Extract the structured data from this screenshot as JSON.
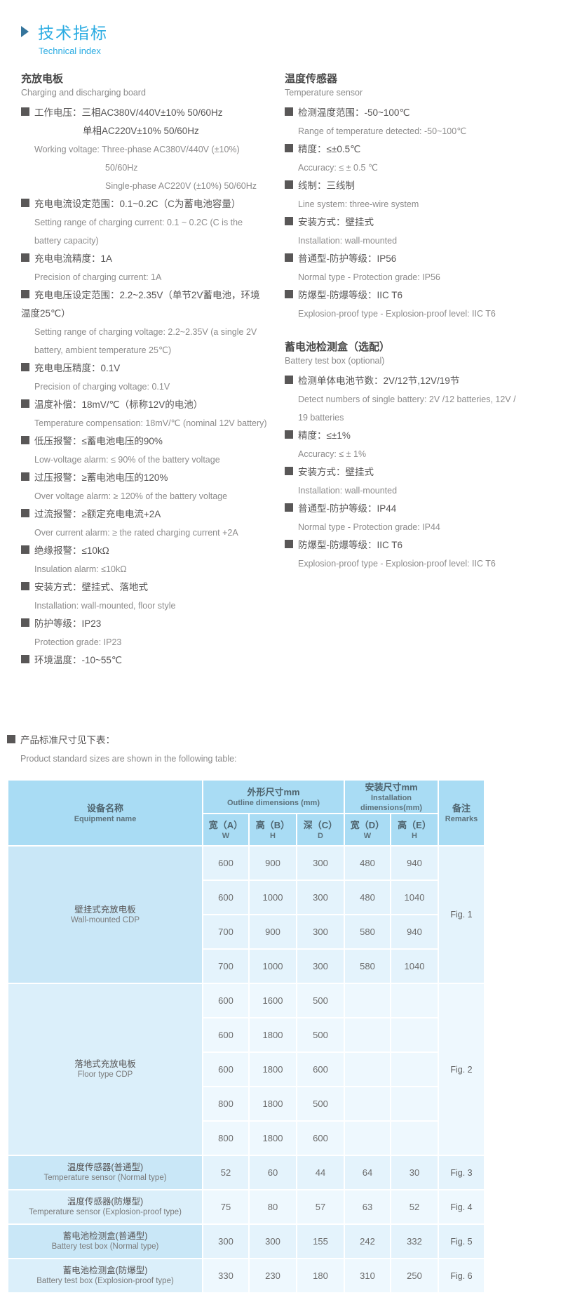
{
  "header": {
    "title_zh": "技术指标",
    "title_en": "Technical index"
  },
  "colors": {
    "accent_blue": "#29abe2",
    "arrow_blue": "#35759c",
    "bullet_gray": "#595757",
    "table_header_bg": "#a9dcf4",
    "table_name_bg_odd": "#c9e7f7",
    "table_name_bg_even": "#dbeffa",
    "table_data_bg_odd": "#e4f3fc",
    "table_data_bg_even": "#eef8fe"
  },
  "columns": {
    "left": {
      "sections": [
        {
          "heading_zh": "充放电板",
          "heading_en": "Charging and discharging board",
          "items": [
            {
              "zh_lines": [
                "工作电压：三相AC380V/440V±10%  50/60Hz",
                "单相AC220V±10%  50/60Hz"
              ],
              "en_lines": [
                "Working voltage: Three-phase AC380V/440V (±10%)",
                "50/60Hz",
                "Single-phase AC220V (±10%) 50/60Hz"
              ]
            },
            {
              "zh_lines": [
                "充电电流设定范围：0.1~0.2C（C为蓄电池容量）"
              ],
              "en_lines": [
                "Setting range of charging current: 0.1 ~ 0.2C (C is the battery capacity)"
              ]
            },
            {
              "zh_lines": [
                "充电电流精度：1A"
              ],
              "en_lines": [
                "Precision of charging current: 1A"
              ]
            },
            {
              "zh_lines": [
                "充电电压设定范围：2.2~2.35V（单节2V蓄电池，环境温度25℃）"
              ],
              "en_lines": [
                "Setting range of charging voltage: 2.2~2.35V (a single 2V battery, ambient temperature 25℃)"
              ]
            },
            {
              "zh_lines": [
                "充电电压精度：0.1V"
              ],
              "en_lines": [
                "Precision of charging voltage: 0.1V"
              ]
            },
            {
              "zh_lines": [
                "温度补偿：18mV/℃（标称12V的电池）"
              ],
              "en_lines": [
                "Temperature compensation: 18mV/℃ (nominal 12V battery)"
              ]
            },
            {
              "zh_lines": [
                "低压报警：≤蓄电池电压的90%"
              ],
              "en_lines": [
                "Low-voltage alarm: ≤ 90% of the battery voltage"
              ]
            },
            {
              "zh_lines": [
                "过压报警：≥蓄电池电压的120%"
              ],
              "en_lines": [
                "Over voltage alarm: ≥ 120% of the battery voltage"
              ]
            },
            {
              "zh_lines": [
                "过流报警：≥额定充电电流+2A"
              ],
              "en_lines": [
                "Over current alarm: ≥ the rated charging current +2A"
              ]
            },
            {
              "zh_lines": [
                "绝缘报警：≤10kΩ"
              ],
              "en_lines": [
                "Insulation alarm: ≤10kΩ"
              ]
            },
            {
              "zh_lines": [
                "安装方式：壁挂式、落地式"
              ],
              "en_lines": [
                "Installation: wall-mounted, floor style"
              ]
            },
            {
              "zh_lines": [
                "防护等级：IP23"
              ],
              "en_lines": [
                "Protection grade: IP23"
              ]
            },
            {
              "zh_lines": [
                "环境温度：-10~55℃"
              ],
              "en_lines": []
            }
          ]
        }
      ]
    },
    "right": {
      "sections": [
        {
          "heading_zh": "温度传感器",
          "heading_en": "Temperature sensor",
          "items": [
            {
              "zh_lines": [
                "检测温度范围：-50~100℃"
              ],
              "en_lines": [
                "Range of temperature detected: -50~100℃"
              ]
            },
            {
              "zh_lines": [
                "精度：≤±0.5℃"
              ],
              "en_lines": [
                "Accuracy: ≤ ± 0.5 ℃"
              ]
            },
            {
              "zh_lines": [
                "线制：三线制"
              ],
              "en_lines": [
                "Line system: three-wire system"
              ]
            },
            {
              "zh_lines": [
                "安装方式：壁挂式"
              ],
              "en_lines": [
                "Installation: wall-mounted"
              ]
            },
            {
              "zh_lines": [
                "普通型-防护等级：IP56"
              ],
              "en_lines": [
                "Normal type - Protection grade: IP56"
              ]
            },
            {
              "zh_lines": [
                "防爆型-防爆等级：IIC T6"
              ],
              "en_lines": [
                "Explosion-proof type - Explosion-proof level: IIC T6"
              ]
            }
          ]
        },
        {
          "heading_zh": "蓄电池检测盒（选配）",
          "heading_en": "Battery test box (optional)",
          "items": [
            {
              "zh_lines": [
                "检测单体电池节数：2V/12节,12V/19节"
              ],
              "en_lines": [
                "Detect numbers of single battery: 2V /12 batteries, 12V / 19 batteries"
              ]
            },
            {
              "zh_lines": [
                "精度：≤±1%"
              ],
              "en_lines": [
                "Accuracy: ≤ ± 1%"
              ]
            },
            {
              "zh_lines": [
                "安装方式：壁挂式"
              ],
              "en_lines": [
                "Installation: wall-mounted"
              ]
            },
            {
              "zh_lines": [
                "普通型-防护等级：IP44"
              ],
              "en_lines": [
                "Normal type - Protection grade: IP44"
              ]
            },
            {
              "zh_lines": [
                "防爆型-防爆等级：IIC T6"
              ],
              "en_lines": [
                "Explosion-proof type - Explosion-proof level: IIC T6"
              ]
            }
          ]
        }
      ]
    }
  },
  "table_note": {
    "zh": "产品标准尺寸见下表：",
    "en": "Product standard sizes are shown in the following table:"
  },
  "table": {
    "header": {
      "equipment_zh": "设备名称",
      "equipment_en": "Equipment name",
      "outline_zh": "外形尺寸mm",
      "outline_en": "Outline dimensions  (mm)",
      "install_zh": "安装尺寸mm",
      "install_en": "Installation dimensions(mm)",
      "remarks_zh": "备注",
      "remarks_en": "Remarks",
      "sub": [
        {
          "zh": "宽（A）",
          "en": "W"
        },
        {
          "zh": "高（B）",
          "en": "H"
        },
        {
          "zh": "深（C）",
          "en": "D"
        },
        {
          "zh": "宽（D）",
          "en": "W"
        },
        {
          "zh": "高（E）",
          "en": "H"
        }
      ]
    },
    "sections": [
      {
        "name_zh": "壁挂式充放电板",
        "name_en": "Wall-mounted CDP",
        "remark": "Fig. 1",
        "rows": [
          [
            "600",
            "900",
            "300",
            "480",
            "940"
          ],
          [
            "600",
            "1000",
            "300",
            "480",
            "1040"
          ],
          [
            "700",
            "900",
            "300",
            "580",
            "940"
          ],
          [
            "700",
            "1000",
            "300",
            "580",
            "1040"
          ]
        ]
      },
      {
        "name_zh": "落地式充放电板",
        "name_en": "Floor type CDP",
        "remark": "Fig. 2",
        "rows": [
          [
            "600",
            "1600",
            "500",
            "",
            ""
          ],
          [
            "600",
            "1800",
            "500",
            "",
            ""
          ],
          [
            "600",
            "1800",
            "600",
            "",
            ""
          ],
          [
            "800",
            "1800",
            "500",
            "",
            ""
          ],
          [
            "800",
            "1800",
            "600",
            "",
            ""
          ]
        ]
      },
      {
        "name_zh": "温度传感器(普通型)",
        "name_en": "Temperature sensor (Normal type)",
        "remark": "Fig. 3",
        "rows": [
          [
            "52",
            "60",
            "44",
            "64",
            "30"
          ]
        ]
      },
      {
        "name_zh": "温度传感器(防爆型)",
        "name_en": "Temperature sensor (Explosion-proof type)",
        "remark": "Fig. 4",
        "rows": [
          [
            "75",
            "80",
            "57",
            "63",
            "52"
          ]
        ]
      },
      {
        "name_zh": "蓄电池检测盒(普通型)",
        "name_en": "Battery test box (Normal type)",
        "remark": "Fig. 5",
        "rows": [
          [
            "300",
            "300",
            "155",
            "242",
            "332"
          ]
        ]
      },
      {
        "name_zh": "蓄电池检测盒(防爆型)",
        "name_en": "Battery test box (Explosion-proof type)",
        "remark": "Fig. 6",
        "rows": [
          [
            "330",
            "230",
            "180",
            "310",
            "250"
          ]
        ]
      }
    ]
  }
}
